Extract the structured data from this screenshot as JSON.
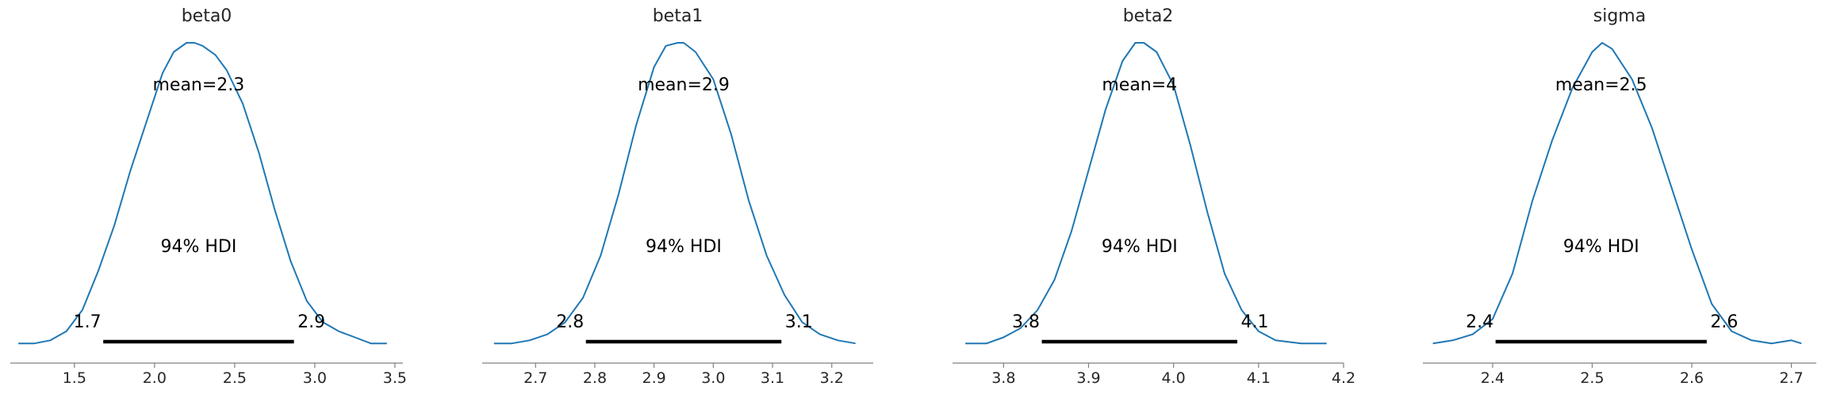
{
  "colors": {
    "kde": "#1f77b4",
    "hdi": "#000000",
    "axis": "#808080",
    "text": "#262626"
  },
  "chart_data": [
    {
      "type": "line",
      "title": "beta0",
      "mean_label": "mean=2.3",
      "hdi_label": "94% HDI",
      "hdi": [
        1.68,
        2.87
      ],
      "hdi_low_label": "1.7",
      "hdi_high_label": "2.9",
      "xlim": [
        1.1,
        3.55
      ],
      "xticks": [
        1.5,
        2.0,
        2.5,
        3.0,
        3.5
      ],
      "xtick_labels": [
        "1.5",
        "2.0",
        "2.5",
        "3.0",
        "3.5"
      ],
      "x": [
        1.15,
        1.25,
        1.35,
        1.45,
        1.55,
        1.65,
        1.75,
        1.85,
        1.95,
        2.05,
        2.12,
        2.2,
        2.25,
        2.3,
        2.38,
        2.45,
        2.55,
        2.65,
        2.75,
        2.85,
        2.95,
        3.05,
        3.15,
        3.25,
        3.35,
        3.45
      ],
      "y": [
        0.01,
        0.01,
        0.02,
        0.05,
        0.12,
        0.25,
        0.4,
        0.58,
        0.74,
        0.9,
        0.97,
        1.0,
        1.0,
        0.99,
        0.96,
        0.91,
        0.8,
        0.64,
        0.45,
        0.28,
        0.15,
        0.08,
        0.05,
        0.03,
        0.01,
        0.01
      ]
    },
    {
      "type": "line",
      "title": "beta1",
      "mean_label": "mean=2.9",
      "hdi_label": "94% HDI",
      "hdi": [
        2.785,
        3.115
      ],
      "hdi_low_label": "2.8",
      "hdi_high_label": "3.1",
      "xlim": [
        2.61,
        3.27
      ],
      "xticks": [
        2.7,
        2.8,
        2.9,
        3.0,
        3.1,
        3.2
      ],
      "xtick_labels": [
        "2.7",
        "2.8",
        "2.9",
        "3.0",
        "3.1",
        "3.2"
      ],
      "x": [
        2.63,
        2.66,
        2.69,
        2.72,
        2.75,
        2.78,
        2.81,
        2.84,
        2.87,
        2.9,
        2.92,
        2.94,
        2.95,
        2.97,
        3.0,
        3.03,
        3.06,
        3.09,
        3.12,
        3.15,
        3.18,
        3.21,
        3.24
      ],
      "y": [
        0.01,
        0.01,
        0.02,
        0.04,
        0.08,
        0.16,
        0.3,
        0.5,
        0.73,
        0.92,
        0.99,
        1.0,
        1.0,
        0.97,
        0.88,
        0.7,
        0.48,
        0.3,
        0.17,
        0.08,
        0.04,
        0.02,
        0.01
      ]
    },
    {
      "type": "line",
      "title": "beta2",
      "mean_label": "mean=4",
      "hdi_label": "94% HDI",
      "hdi": [
        3.845,
        4.075
      ],
      "hdi_low_label": "3.8",
      "hdi_high_label": "4.1",
      "xlim": [
        3.74,
        4.2
      ],
      "xticks": [
        3.8,
        3.9,
        4.0,
        4.1,
        4.2
      ],
      "xtick_labels": [
        "3.8",
        "3.9",
        "4.0",
        "4.1",
        "4.2"
      ],
      "x": [
        3.755,
        3.78,
        3.8,
        3.82,
        3.84,
        3.86,
        3.88,
        3.9,
        3.92,
        3.94,
        3.955,
        3.965,
        3.98,
        4.0,
        4.02,
        4.04,
        4.06,
        4.08,
        4.1,
        4.12,
        4.15,
        4.18
      ],
      "y": [
        0.01,
        0.01,
        0.03,
        0.06,
        0.12,
        0.22,
        0.38,
        0.58,
        0.78,
        0.94,
        1.0,
        1.0,
        0.97,
        0.86,
        0.66,
        0.44,
        0.24,
        0.12,
        0.05,
        0.02,
        0.01,
        0.01
      ]
    },
    {
      "type": "line",
      "title": "sigma",
      "mean_label": "mean=2.5",
      "hdi_label": "94% HDI",
      "hdi": [
        2.403,
        2.615
      ],
      "hdi_low_label": "2.4",
      "hdi_high_label": "2.6",
      "xlim": [
        2.33,
        2.725
      ],
      "xticks": [
        2.4,
        2.5,
        2.6,
        2.7
      ],
      "xtick_labels": [
        "2.4",
        "2.5",
        "2.6",
        "2.7"
      ],
      "x": [
        2.34,
        2.36,
        2.38,
        2.4,
        2.42,
        2.44,
        2.46,
        2.48,
        2.5,
        2.51,
        2.52,
        2.54,
        2.56,
        2.58,
        2.6,
        2.62,
        2.64,
        2.66,
        2.68,
        2.7,
        2.71
      ],
      "y": [
        0.01,
        0.02,
        0.04,
        0.09,
        0.24,
        0.48,
        0.68,
        0.85,
        0.97,
        1.0,
        0.98,
        0.88,
        0.72,
        0.52,
        0.32,
        0.14,
        0.05,
        0.02,
        0.01,
        0.02,
        0.01
      ]
    }
  ]
}
